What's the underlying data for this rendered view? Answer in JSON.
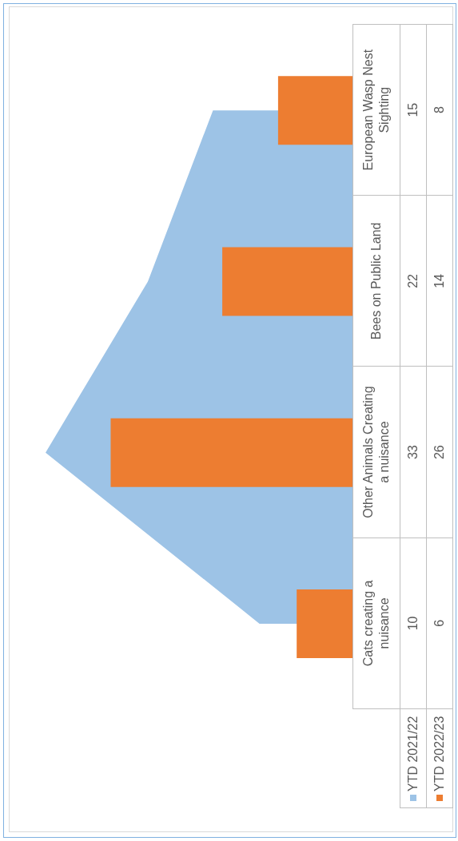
{
  "chart_data": {
    "type": "bar",
    "orientation": "horizontal",
    "categories": [
      "European Wasp Nest Sighting",
      "Bees on Public Land",
      "Other Animals Creating a nuisance",
      "Cats creating a nuisance"
    ],
    "series": [
      {
        "name": "YTD 2021/22",
        "type": "area",
        "color": "#9dc3e6",
        "values": [
          15,
          22,
          33,
          10
        ]
      },
      {
        "name": "YTD 2022/23",
        "color": "#ed7d31",
        "values": [
          8,
          14,
          26,
          6
        ]
      }
    ],
    "data_labels": true,
    "legend": "bottom right",
    "tick_labels": "y"
  }
}
